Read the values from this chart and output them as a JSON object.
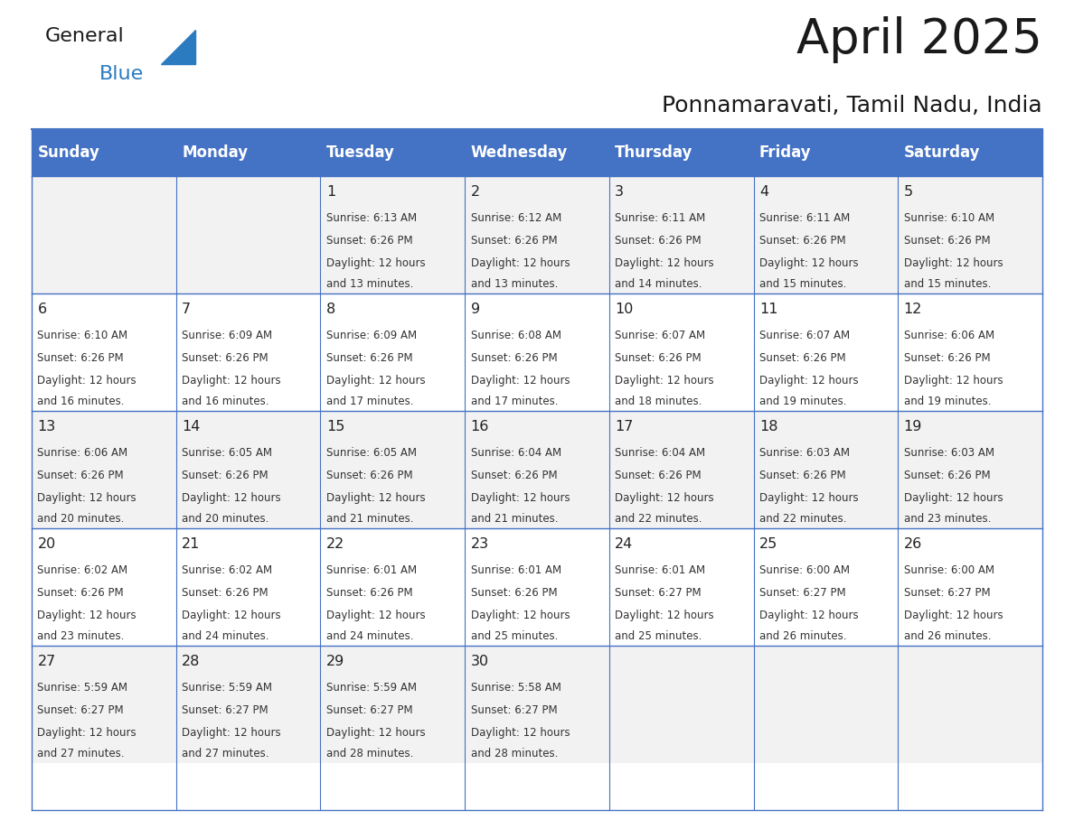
{
  "title": "April 2025",
  "subtitle": "Ponnamaravati, Tamil Nadu, India",
  "days_of_week": [
    "Sunday",
    "Monday",
    "Tuesday",
    "Wednesday",
    "Thursday",
    "Friday",
    "Saturday"
  ],
  "header_bg": "#4472C4",
  "header_text": "#FFFFFF",
  "row_bg_odd": "#F2F2F2",
  "row_bg_even": "#FFFFFF",
  "cell_border": "#4472C4",
  "text_color": "#333333",
  "calendar_data": [
    [
      null,
      null,
      {
        "day": 1,
        "sunrise": "6:13 AM",
        "sunset": "6:26 PM",
        "daylight": "12 hours and 13 minutes"
      },
      {
        "day": 2,
        "sunrise": "6:12 AM",
        "sunset": "6:26 PM",
        "daylight": "12 hours and 13 minutes"
      },
      {
        "day": 3,
        "sunrise": "6:11 AM",
        "sunset": "6:26 PM",
        "daylight": "12 hours and 14 minutes"
      },
      {
        "day": 4,
        "sunrise": "6:11 AM",
        "sunset": "6:26 PM",
        "daylight": "12 hours and 15 minutes"
      },
      {
        "day": 5,
        "sunrise": "6:10 AM",
        "sunset": "6:26 PM",
        "daylight": "12 hours and 15 minutes"
      }
    ],
    [
      {
        "day": 6,
        "sunrise": "6:10 AM",
        "sunset": "6:26 PM",
        "daylight": "12 hours and 16 minutes"
      },
      {
        "day": 7,
        "sunrise": "6:09 AM",
        "sunset": "6:26 PM",
        "daylight": "12 hours and 16 minutes"
      },
      {
        "day": 8,
        "sunrise": "6:09 AM",
        "sunset": "6:26 PM",
        "daylight": "12 hours and 17 minutes"
      },
      {
        "day": 9,
        "sunrise": "6:08 AM",
        "sunset": "6:26 PM",
        "daylight": "12 hours and 17 minutes"
      },
      {
        "day": 10,
        "sunrise": "6:07 AM",
        "sunset": "6:26 PM",
        "daylight": "12 hours and 18 minutes"
      },
      {
        "day": 11,
        "sunrise": "6:07 AM",
        "sunset": "6:26 PM",
        "daylight": "12 hours and 19 minutes"
      },
      {
        "day": 12,
        "sunrise": "6:06 AM",
        "sunset": "6:26 PM",
        "daylight": "12 hours and 19 minutes"
      }
    ],
    [
      {
        "day": 13,
        "sunrise": "6:06 AM",
        "sunset": "6:26 PM",
        "daylight": "12 hours and 20 minutes"
      },
      {
        "day": 14,
        "sunrise": "6:05 AM",
        "sunset": "6:26 PM",
        "daylight": "12 hours and 20 minutes"
      },
      {
        "day": 15,
        "sunrise": "6:05 AM",
        "sunset": "6:26 PM",
        "daylight": "12 hours and 21 minutes"
      },
      {
        "day": 16,
        "sunrise": "6:04 AM",
        "sunset": "6:26 PM",
        "daylight": "12 hours and 21 minutes"
      },
      {
        "day": 17,
        "sunrise": "6:04 AM",
        "sunset": "6:26 PM",
        "daylight": "12 hours and 22 minutes"
      },
      {
        "day": 18,
        "sunrise": "6:03 AM",
        "sunset": "6:26 PM",
        "daylight": "12 hours and 22 minutes"
      },
      {
        "day": 19,
        "sunrise": "6:03 AM",
        "sunset": "6:26 PM",
        "daylight": "12 hours and 23 minutes"
      }
    ],
    [
      {
        "day": 20,
        "sunrise": "6:02 AM",
        "sunset": "6:26 PM",
        "daylight": "12 hours and 23 minutes"
      },
      {
        "day": 21,
        "sunrise": "6:02 AM",
        "sunset": "6:26 PM",
        "daylight": "12 hours and 24 minutes"
      },
      {
        "day": 22,
        "sunrise": "6:01 AM",
        "sunset": "6:26 PM",
        "daylight": "12 hours and 24 minutes"
      },
      {
        "day": 23,
        "sunrise": "6:01 AM",
        "sunset": "6:26 PM",
        "daylight": "12 hours and 25 minutes"
      },
      {
        "day": 24,
        "sunrise": "6:01 AM",
        "sunset": "6:27 PM",
        "daylight": "12 hours and 25 minutes"
      },
      {
        "day": 25,
        "sunrise": "6:00 AM",
        "sunset": "6:27 PM",
        "daylight": "12 hours and 26 minutes"
      },
      {
        "day": 26,
        "sunrise": "6:00 AM",
        "sunset": "6:27 PM",
        "daylight": "12 hours and 26 minutes"
      }
    ],
    [
      {
        "day": 27,
        "sunrise": "5:59 AM",
        "sunset": "6:27 PM",
        "daylight": "12 hours and 27 minutes"
      },
      {
        "day": 28,
        "sunrise": "5:59 AM",
        "sunset": "6:27 PM",
        "daylight": "12 hours and 27 minutes"
      },
      {
        "day": 29,
        "sunrise": "5:59 AM",
        "sunset": "6:27 PM",
        "daylight": "12 hours and 28 minutes"
      },
      {
        "day": 30,
        "sunrise": "5:58 AM",
        "sunset": "6:27 PM",
        "daylight": "12 hours and 28 minutes"
      },
      null,
      null,
      null
    ]
  ]
}
